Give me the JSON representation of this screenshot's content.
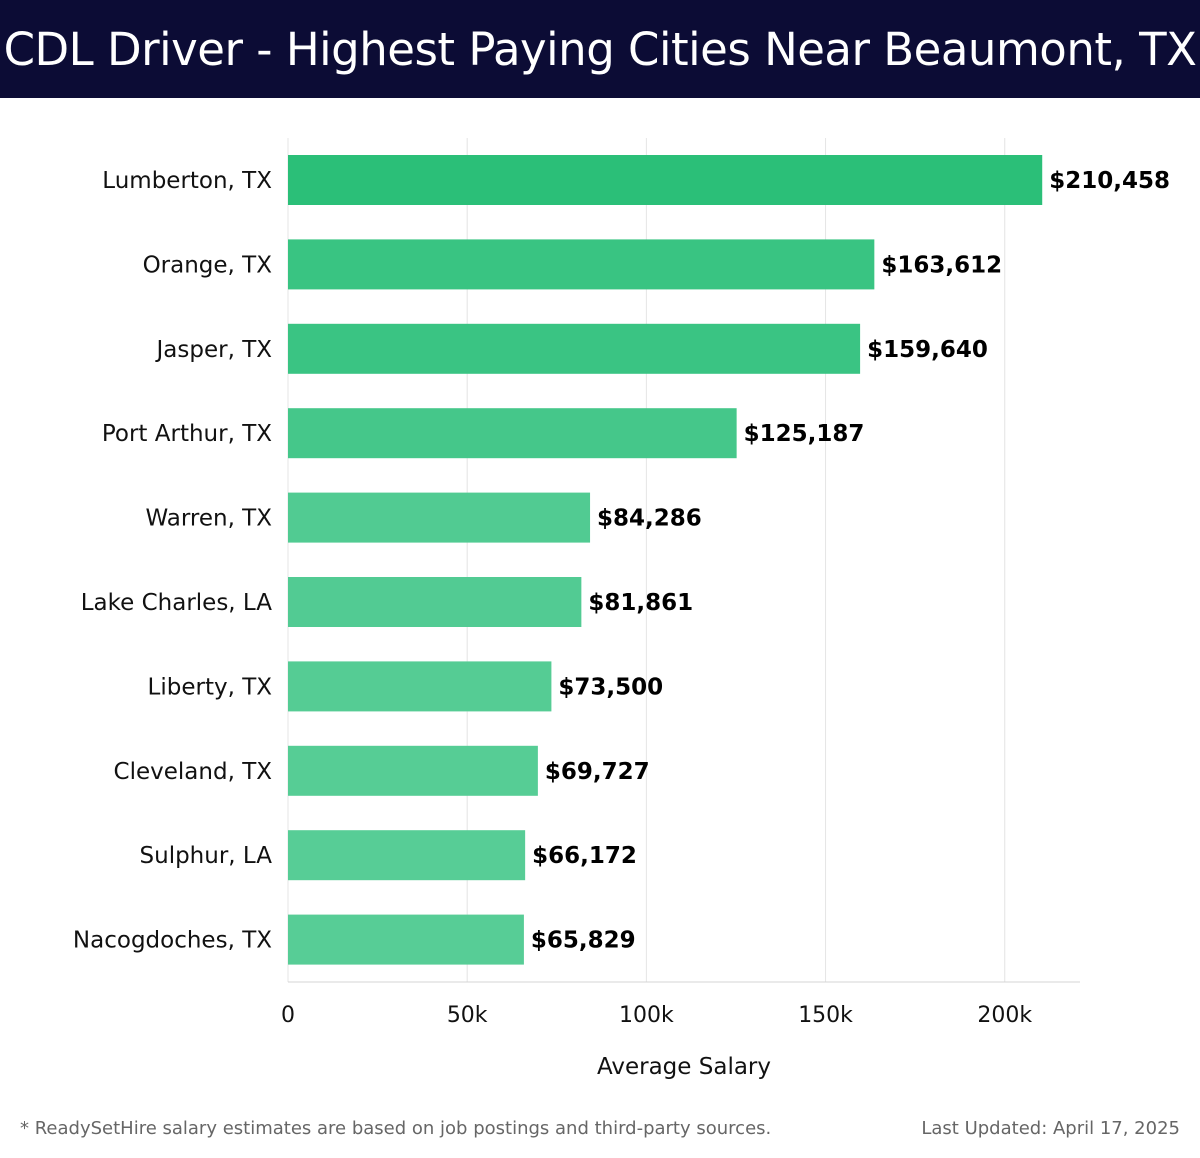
{
  "header": {
    "title": "CDL Driver - Highest Paying Cities Near Beaumont, TX"
  },
  "footer": {
    "note": "* ReadySetHire salary estimates are based on job postings and third-party sources.",
    "updated": "Last Updated: April 17, 2025"
  },
  "colors": {
    "header_bg": "#0c0c35",
    "bar_high": "#2bbf78",
    "bar_low": "#57cd96",
    "grid": "#e4e4e4",
    "label": "#111111"
  },
  "chart_data": {
    "type": "bar",
    "orientation": "horizontal",
    "categories": [
      "Lumberton, TX",
      "Orange, TX",
      "Jasper, TX",
      "Port Arthur, TX",
      "Warren, TX",
      "Lake Charles, LA",
      "Liberty, TX",
      "Cleveland, TX",
      "Sulphur, LA",
      "Nacogdoches, TX"
    ],
    "values": [
      210458,
      163612,
      159640,
      125187,
      84286,
      81861,
      73500,
      69727,
      66172,
      65829
    ],
    "value_labels": [
      "$210,458",
      "$163,612",
      "$159,640",
      "$125,187",
      "$84,286",
      "$81,861",
      "$73,500",
      "$69,727",
      "$66,172",
      "$65,829"
    ],
    "xlabel": "Average Salary",
    "ylabel": "",
    "xlim": [
      0,
      221000
    ],
    "xticks": [
      0,
      50000,
      100000,
      150000,
      200000
    ],
    "xtick_labels": [
      "0",
      "50k",
      "100k",
      "150k",
      "200k"
    ],
    "grid": true
  }
}
